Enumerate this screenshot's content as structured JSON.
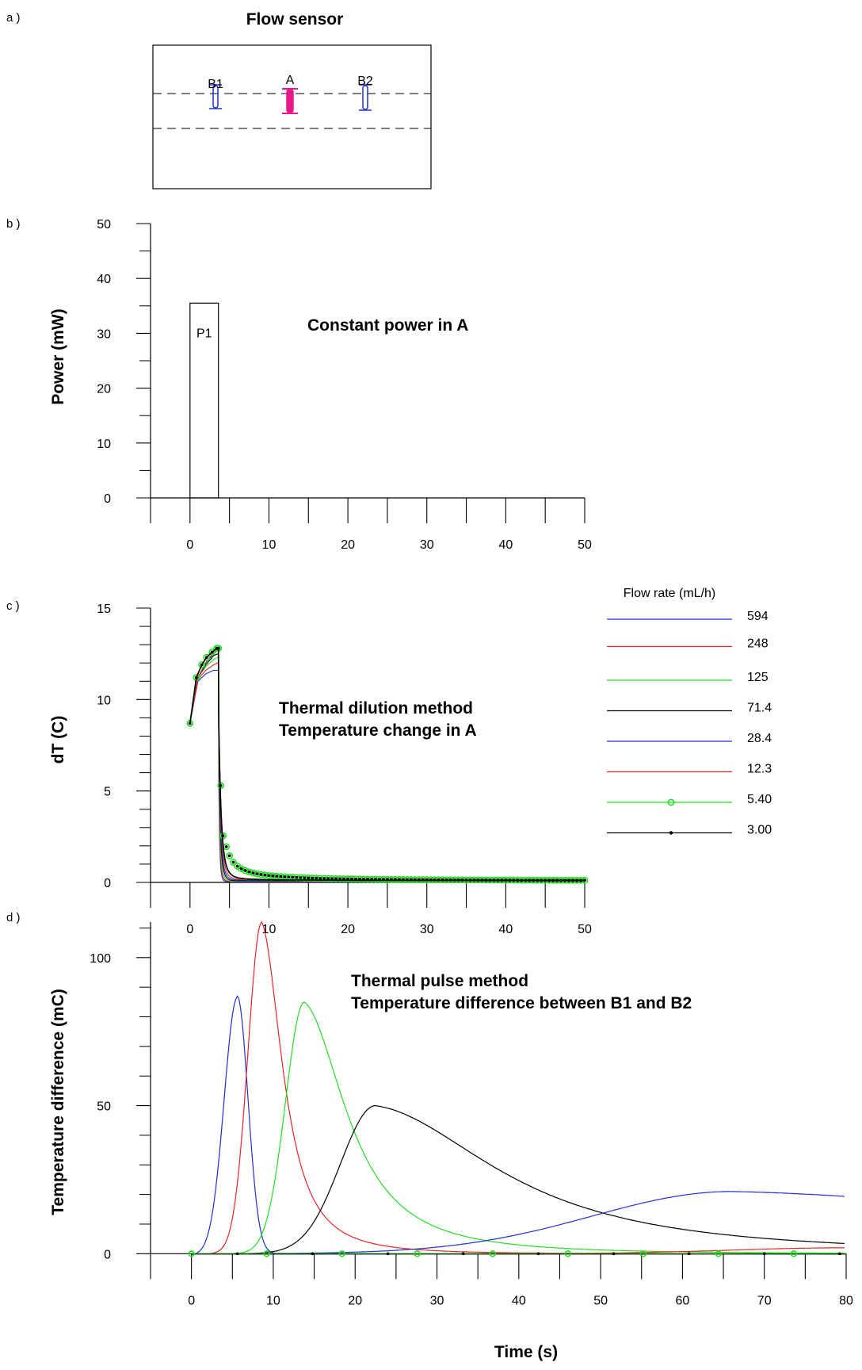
{
  "panel_labels": {
    "a": "a )",
    "b": "b )",
    "c": "c )",
    "d": "d )"
  },
  "sensor": {
    "title": "Flow sensor",
    "elements": [
      {
        "label": "B1",
        "color": "#1f2fd0",
        "filled": false
      },
      {
        "label": "A",
        "color": "#e8198a",
        "filled": true
      },
      {
        "label": "B2",
        "color": "#1f2fd0",
        "filled": false
      }
    ]
  },
  "chart_data": [
    {
      "id": "power",
      "type": "bar",
      "title": "",
      "annotation": "Constant power in A",
      "xlabel": "",
      "ylabel": "Power (mW)",
      "xlim": [
        -5,
        50
      ],
      "ylim": [
        0,
        50
      ],
      "x_ticks": [
        0,
        10,
        20,
        30,
        40,
        50
      ],
      "y_ticks": [
        0,
        10,
        20,
        30,
        40,
        50
      ],
      "bars": [
        {
          "label": "P1",
          "x_start": 0,
          "x_end": 3.6,
          "value": 35.5
        }
      ]
    },
    {
      "id": "dilution",
      "type": "line",
      "annotation_lines": [
        "Thermal dilution method",
        "Temperature change in A"
      ],
      "xlabel": "",
      "ylabel": "dT (C)",
      "xlim": [
        -5,
        50
      ],
      "ylim": [
        0,
        15
      ],
      "x_ticks": [
        0,
        10,
        20,
        30,
        40,
        50
      ],
      "y_ticks": [
        0,
        5,
        10,
        15
      ],
      "legend_title": "Flow rate (mL/h)",
      "legend_position": "right",
      "series": [
        {
          "name": "594",
          "color": "#1f2fd0",
          "marker": "none",
          "rise_x": [
            0,
            1,
            2,
            3,
            3.5
          ],
          "rise_y": [
            8.7,
            11.0,
            11.4,
            11.6,
            11.6
          ],
          "tail": 0.03,
          "decay": 0.45
        },
        {
          "name": "248",
          "color": "#e8242a",
          "marker": "none",
          "rise_x": [
            0,
            1,
            2,
            3,
            3.5
          ],
          "rise_y": [
            8.7,
            11.1,
            11.6,
            11.9,
            12.0
          ],
          "tail": 0.05,
          "decay": 0.55
        },
        {
          "name": "125",
          "color": "#22dd22",
          "marker": "none",
          "rise_x": [
            0,
            1,
            2,
            3,
            3.5
          ],
          "rise_y": [
            8.7,
            11.2,
            11.8,
            12.2,
            12.3
          ],
          "tail": 0.07,
          "decay": 0.7
        },
        {
          "name": "71.4",
          "color": "#000000",
          "marker": "none",
          "rise_x": [
            0,
            1,
            2,
            3,
            3.5
          ],
          "rise_y": [
            8.7,
            11.2,
            11.9,
            12.4,
            12.5
          ],
          "tail": 0.09,
          "decay": 0.85
        },
        {
          "name": "28.4",
          "color": "#1f2fd0",
          "marker": "none",
          "rise_x": [
            0,
            1,
            2,
            3,
            3.5
          ],
          "rise_y": [
            8.7,
            11.2,
            12.0,
            12.5,
            12.7
          ],
          "tail": 0.12,
          "decay": 1.0
        },
        {
          "name": "12.3",
          "color": "#e8242a",
          "marker": "none",
          "rise_x": [
            0,
            1,
            2,
            3,
            3.5
          ],
          "rise_y": [
            8.7,
            11.2,
            12.0,
            12.6,
            12.8
          ],
          "tail": 0.15,
          "decay": 1.2
        },
        {
          "name": "5.40",
          "color": "#22dd22",
          "marker": "circle",
          "rise_x": [
            0,
            0.8,
            1.5,
            2.1,
            2.8,
            3.4
          ],
          "rise_y": [
            8.7,
            11.2,
            11.9,
            12.3,
            12.6,
            12.8
          ],
          "tail": 0.1,
          "decay": 1.3
        },
        {
          "name": "3.00",
          "color": "#000000",
          "marker": "dot",
          "rise_x": [
            0,
            0.8,
            1.5,
            2.1,
            2.8,
            3.4
          ],
          "rise_y": [
            8.7,
            11.2,
            11.9,
            12.3,
            12.6,
            12.8
          ],
          "tail": 0.1,
          "decay": 1.3
        }
      ],
      "drop_points": [
        [
          3.6,
          12.8
        ],
        [
          3.9,
          5.3
        ],
        [
          4.2,
          2.55
        ],
        [
          4.6,
          1.95
        ]
      ]
    },
    {
      "id": "pulse",
      "type": "line",
      "annotation_lines": [
        "Thermal pulse method",
        "Temperature difference between B1 and B2"
      ],
      "xlabel": "Time (s)",
      "ylabel": "Temperature difference (mC)",
      "xlim": [
        -5,
        80
      ],
      "ylim": [
        -5,
        112
      ],
      "x_ticks": [
        0,
        10,
        20,
        30,
        40,
        50,
        60,
        70,
        80
      ],
      "y_ticks": [
        0,
        50,
        100
      ],
      "series": [
        {
          "name": "594",
          "color": "#1f2fd0",
          "peak_x": 5.6,
          "peak_y": 87,
          "rise_w": 1.6,
          "fall_w": 1.3,
          "baseline": -0.5
        },
        {
          "name": "248",
          "color": "#e8242a",
          "peak_x": 8.6,
          "peak_y": 112,
          "rise_w": 1.7,
          "fall_w": 3.2,
          "baseline": 0
        },
        {
          "name": "125",
          "color": "#22dd22",
          "peak_x": 13.8,
          "peak_y": 85,
          "rise_w": 2.3,
          "fall_w": 6.5,
          "baseline": 0
        },
        {
          "name": "71.4",
          "color": "#000000",
          "peak_x": 22.5,
          "peak_y": 50,
          "rise_w": 4.3,
          "fall_w": 19,
          "baseline": 0
        },
        {
          "name": "28.4",
          "color": "#1f2fd0",
          "peak_x": 66,
          "peak_y": 21,
          "rise_w": 17,
          "fall_w": 60,
          "baseline": 0
        },
        {
          "name": "12.3",
          "color": "#e8242a",
          "peak_x": 95,
          "peak_y": 6,
          "rise_w": 10,
          "fall_w": 20,
          "baseline": 0
        },
        {
          "name": "5.40",
          "color": "#22dd22",
          "peak_x": 0,
          "peak_y": 0,
          "rise_w": 1,
          "fall_w": 1,
          "baseline": 0,
          "marker": "circle"
        },
        {
          "name": "3.00",
          "color": "#000000",
          "peak_x": 0,
          "peak_y": 0,
          "rise_w": 1,
          "fall_w": 1,
          "baseline": 0,
          "marker": "dot"
        }
      ]
    }
  ]
}
